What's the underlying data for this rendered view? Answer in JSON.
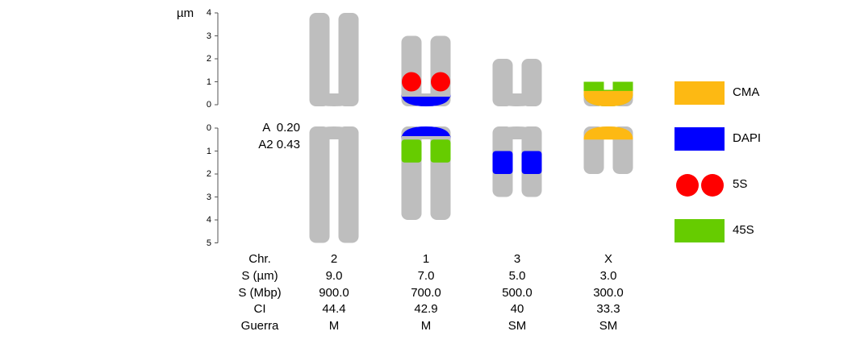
{
  "units_label": "µm",
  "scale": {
    "short_arm_ticks": [
      "4",
      "3",
      "2",
      "1",
      "0"
    ],
    "long_arm_ticks": [
      "0",
      "1",
      "2",
      "3",
      "4",
      "5"
    ]
  },
  "indices": {
    "A": "A  0.20",
    "A2": "A2 0.43"
  },
  "colors": {
    "chromosome": "#BEBEBE",
    "CMA": "#FDB913",
    "DAPI": "#0000FF",
    "5S": "#FF0000",
    "45S": "#66CC00"
  },
  "legend": [
    {
      "label": "CMA",
      "type": "band",
      "color": "#FDB913"
    },
    {
      "label": "DAPI",
      "type": "band",
      "color": "#0000FF"
    },
    {
      "label": "5S",
      "type": "dots",
      "color": "#FF0000"
    },
    {
      "label": "45S",
      "type": "band",
      "color": "#66CC00"
    }
  ],
  "table": {
    "row_headers": [
      "Chr.",
      "S (µm)",
      "S (Mbp)",
      "CI",
      "Guerra"
    ],
    "columns": [
      {
        "values": [
          "2",
          "9.0",
          "900.0",
          "44.4",
          "M"
        ]
      },
      {
        "values": [
          "1",
          "7.0",
          "700.0",
          "42.9",
          "M"
        ]
      },
      {
        "values": [
          "3",
          "5.0",
          "500.0",
          "40",
          "SM"
        ]
      },
      {
        "values": [
          "X",
          "3.0",
          "300.0",
          "33.3",
          "SM"
        ]
      }
    ]
  },
  "chart_data": {
    "type": "idiogram",
    "units": "µm",
    "chromosomes": [
      {
        "name": "2",
        "short_arm": 4,
        "long_arm": 5,
        "marks": []
      },
      {
        "name": "1",
        "short_arm": 3,
        "long_arm": 4,
        "marks": [
          {
            "type": "5S",
            "arm": "short",
            "start": 0.65,
            "end": 1.35,
            "style": "dots"
          },
          {
            "type": "DAPI",
            "arm": "short",
            "start": 0,
            "end": 0.35,
            "style": "band"
          },
          {
            "type": "DAPI",
            "arm": "long",
            "start": 0,
            "end": 0.35,
            "style": "band"
          },
          {
            "type": "45S",
            "arm": "long",
            "start": 0.5,
            "end": 1.5,
            "style": "band"
          }
        ]
      },
      {
        "name": "3",
        "short_arm": 2,
        "long_arm": 3,
        "marks": [
          {
            "type": "DAPI",
            "arm": "long",
            "start": 1,
            "end": 2,
            "style": "band"
          }
        ]
      },
      {
        "name": "X",
        "short_arm": 1,
        "long_arm": 2,
        "marks": [
          {
            "type": "45S",
            "arm": "short",
            "start": 0,
            "end": 1,
            "style": "band"
          },
          {
            "type": "CMA",
            "arm": "short",
            "start": 0,
            "end": 0.6,
            "style": "band"
          },
          {
            "type": "CMA",
            "arm": "long",
            "start": 0,
            "end": 0.5,
            "style": "band"
          }
        ]
      }
    ]
  }
}
